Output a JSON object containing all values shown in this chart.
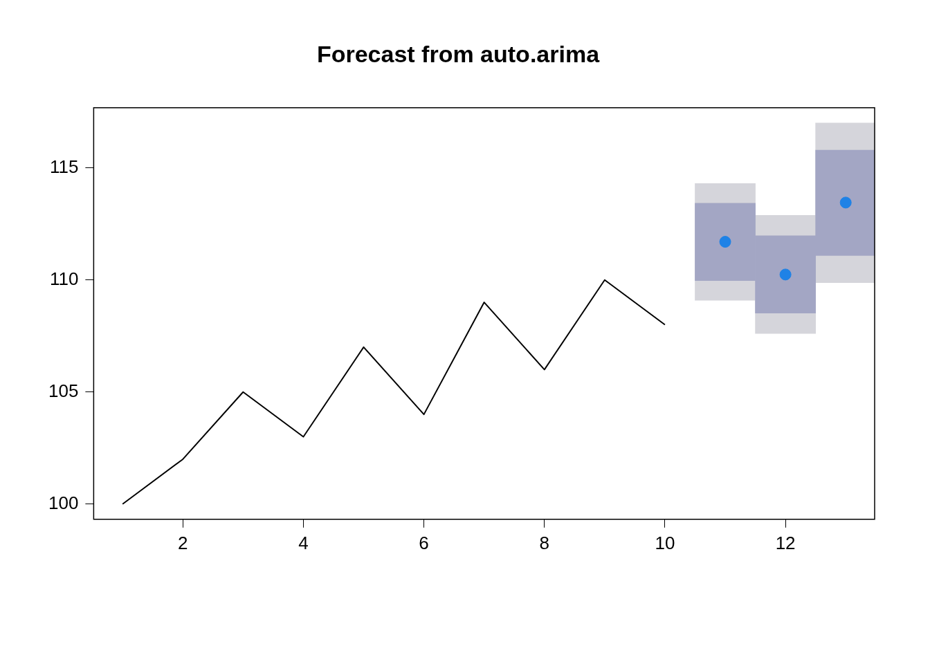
{
  "chart_data": {
    "type": "line",
    "title": "Forecast from auto.arima",
    "xlim": [
      0.52,
      13.48
    ],
    "ylim": [
      99.32,
      117.68
    ],
    "xticks": [
      2,
      4,
      6,
      8,
      10,
      12
    ],
    "yticks": [
      100,
      105,
      110,
      115
    ],
    "grid": false,
    "series": [
      {
        "color": "#000000",
        "marker": "none",
        "x": [
          1,
          2,
          3,
          4,
          5,
          6,
          7,
          8,
          9,
          10
        ],
        "values": [
          100,
          102,
          105,
          103,
          107,
          104,
          109,
          106,
          110,
          108
        ]
      },
      {
        "type": "bar",
        "color": "#d5d5db",
        "x": [
          11,
          12,
          13
        ],
        "base": [
          109.09,
          107.61,
          109.88
        ],
        "values": [
          5.21,
          5.27,
          7.12
        ]
      },
      {
        "type": "bar",
        "color": "#a3a6c4",
        "x": [
          11,
          12,
          13
        ],
        "base": [
          109.97,
          108.52,
          111.09
        ],
        "values": [
          3.45,
          3.45,
          4.7
        ]
      },
      {
        "type": "scatter",
        "color": "#1f82e6",
        "marker": "circle",
        "x": [
          11,
          12,
          13
        ],
        "values": [
          111.7,
          110.24,
          113.45
        ]
      }
    ]
  }
}
